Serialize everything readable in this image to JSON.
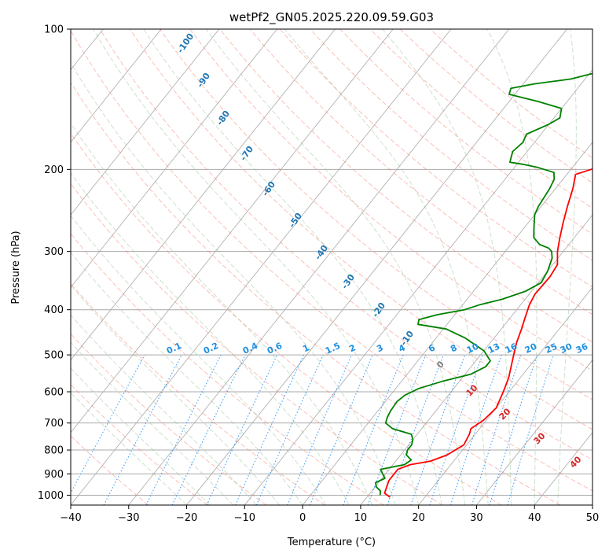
{
  "chart_data": {
    "type": "line",
    "title": "wetPf2_GN05.2025.220.09.59.G03",
    "xlabel": "Temperature (°C)",
    "ylabel": "Pressure (hPa)",
    "xlim": [
      -40,
      50
    ],
    "ylim": [
      1050,
      100
    ],
    "y_scale": "log",
    "x_ticks": [
      "−40",
      "−30",
      "−20",
      "−10",
      "0",
      "10",
      "20",
      "30",
      "40",
      "50"
    ],
    "y_ticks": [
      "100",
      "200",
      "300",
      "400",
      "500",
      "600",
      "700",
      "800",
      "900",
      "1000"
    ],
    "grid": true,
    "colors": {
      "temperature": "#ff0000",
      "dewpoint": "#008000",
      "dry_adiabat_label": "#1f77b4",
      "moist_adiabat_label": "#d62728",
      "mixing_ratio_label": "#1f8fe0",
      "isotherm": "#a9a9a9",
      "dry_adiabat": "#fa8072",
      "moist_adiabat": "#8fbc8f",
      "mixing_ratio": "#1e90ff"
    },
    "series": [
      {
        "name": "temperature",
        "points": [
          [
            14.0,
            1010
          ],
          [
            12.5,
            990
          ],
          [
            12.0,
            960
          ],
          [
            11.5,
            930
          ],
          [
            11.5,
            900
          ],
          [
            11.5,
            880
          ],
          [
            13.0,
            860
          ],
          [
            16.0,
            845
          ],
          [
            18.0,
            820
          ],
          [
            19.5,
            780
          ],
          [
            19.0,
            740
          ],
          [
            18.5,
            720
          ],
          [
            19.5,
            690
          ],
          [
            20.0,
            650
          ],
          [
            19.0,
            600
          ],
          [
            18.0,
            560
          ],
          [
            16.5,
            520
          ],
          [
            15.5,
            495
          ],
          [
            14.5,
            470
          ],
          [
            13.5,
            440
          ],
          [
            12.5,
            415
          ],
          [
            11.5,
            390
          ],
          [
            11.0,
            370
          ],
          [
            11.2,
            340
          ],
          [
            10.8,
            320
          ],
          [
            9.0,
            300
          ],
          [
            7.5,
            280
          ],
          [
            6.0,
            260
          ],
          [
            4.5,
            240
          ],
          [
            3.0,
            220
          ],
          [
            1.5,
            205
          ],
          [
            3.5,
            200
          ],
          [
            8.0,
            195
          ],
          [
            13.5,
            190
          ],
          [
            16.5,
            185
          ],
          [
            19.0,
            175
          ],
          [
            21.0,
            165
          ],
          [
            23.0,
            155
          ],
          [
            25.0,
            145
          ],
          [
            26.5,
            138
          ],
          [
            28.5,
            128
          ],
          [
            29.7,
            120
          ],
          [
            30.5,
            113
          ],
          [
            31.0,
            109
          ],
          [
            31.5,
            104
          ],
          [
            32.0,
            100
          ]
        ]
      },
      {
        "name": "dewpoint",
        "points": [
          [
            12.0,
            1000
          ],
          [
            11.5,
            980
          ],
          [
            10.2,
            960
          ],
          [
            9.5,
            940
          ],
          [
            10.5,
            920
          ],
          [
            9.5,
            900
          ],
          [
            8.5,
            880
          ],
          [
            12.0,
            860
          ],
          [
            12.5,
            840
          ],
          [
            11.0,
            820
          ],
          [
            10.5,
            800
          ],
          [
            10.5,
            780
          ],
          [
            10.0,
            760
          ],
          [
            9.0,
            740
          ],
          [
            5.0,
            720
          ],
          [
            3.0,
            700
          ],
          [
            2.5,
            680
          ],
          [
            2.2,
            660
          ],
          [
            2.0,
            630
          ],
          [
            2.5,
            610
          ],
          [
            4.0,
            590
          ],
          [
            7.0,
            570
          ],
          [
            11.0,
            550
          ],
          [
            12.5,
            530
          ],
          [
            12.5,
            515
          ],
          [
            10.0,
            490
          ],
          [
            5.0,
            460
          ],
          [
            0.5,
            440
          ],
          [
            -5.0,
            430
          ],
          [
            -5.5,
            420
          ],
          [
            -3.0,
            410
          ],
          [
            1.0,
            400
          ],
          [
            3.0,
            390
          ],
          [
            6.0,
            380
          ],
          [
            9.0,
            365
          ],
          [
            10.5,
            350
          ],
          [
            10.0,
            330
          ],
          [
            9.0,
            310
          ],
          [
            8.0,
            300
          ],
          [
            7.0,
            295
          ],
          [
            5.0,
            290
          ],
          [
            3.0,
            280
          ],
          [
            2.0,
            270
          ],
          [
            1.0,
            260
          ],
          [
            0.0,
            250
          ],
          [
            -0.5,
            240
          ],
          [
            -1.0,
            220
          ],
          [
            -1.5,
            210
          ],
          [
            -2.5,
            203
          ],
          [
            -6.0,
            198
          ],
          [
            -9.0,
            195
          ],
          [
            -11.5,
            193
          ],
          [
            -12.0,
            188
          ],
          [
            -12.5,
            183
          ],
          [
            -12.0,
            175
          ],
          [
            -12.5,
            168
          ],
          [
            -10.0,
            160
          ],
          [
            -9.0,
            155
          ],
          [
            -10.0,
            148
          ],
          [
            -15.0,
            143
          ],
          [
            -21.0,
            138
          ],
          [
            -21.5,
            134
          ],
          [
            -18.0,
            131
          ],
          [
            -12.5,
            128
          ],
          [
            -9.0,
            124
          ],
          [
            -8.5,
            120
          ],
          [
            -9.5,
            116
          ],
          [
            -10.0,
            113
          ],
          [
            -10.0,
            110
          ],
          [
            -10.0,
            106
          ],
          [
            -9.5,
            103
          ],
          [
            -9.5,
            100
          ]
        ]
      }
    ],
    "dry_adiabat_labels": [
      "-100",
      "-90",
      "-80",
      "-70",
      "-60",
      "-50",
      "-40",
      "-30",
      "-20",
      "-10"
    ],
    "moist_adiabat_labels": [
      "0",
      "10",
      "20",
      "30",
      "40"
    ],
    "mixing_ratio_labels": [
      "0.1",
      "0.2",
      "0.4",
      "0.6",
      "1",
      "1.5",
      "2",
      "3",
      "4",
      "6",
      "8",
      "10",
      "13",
      "16",
      "20",
      "25",
      "30",
      "36"
    ]
  }
}
